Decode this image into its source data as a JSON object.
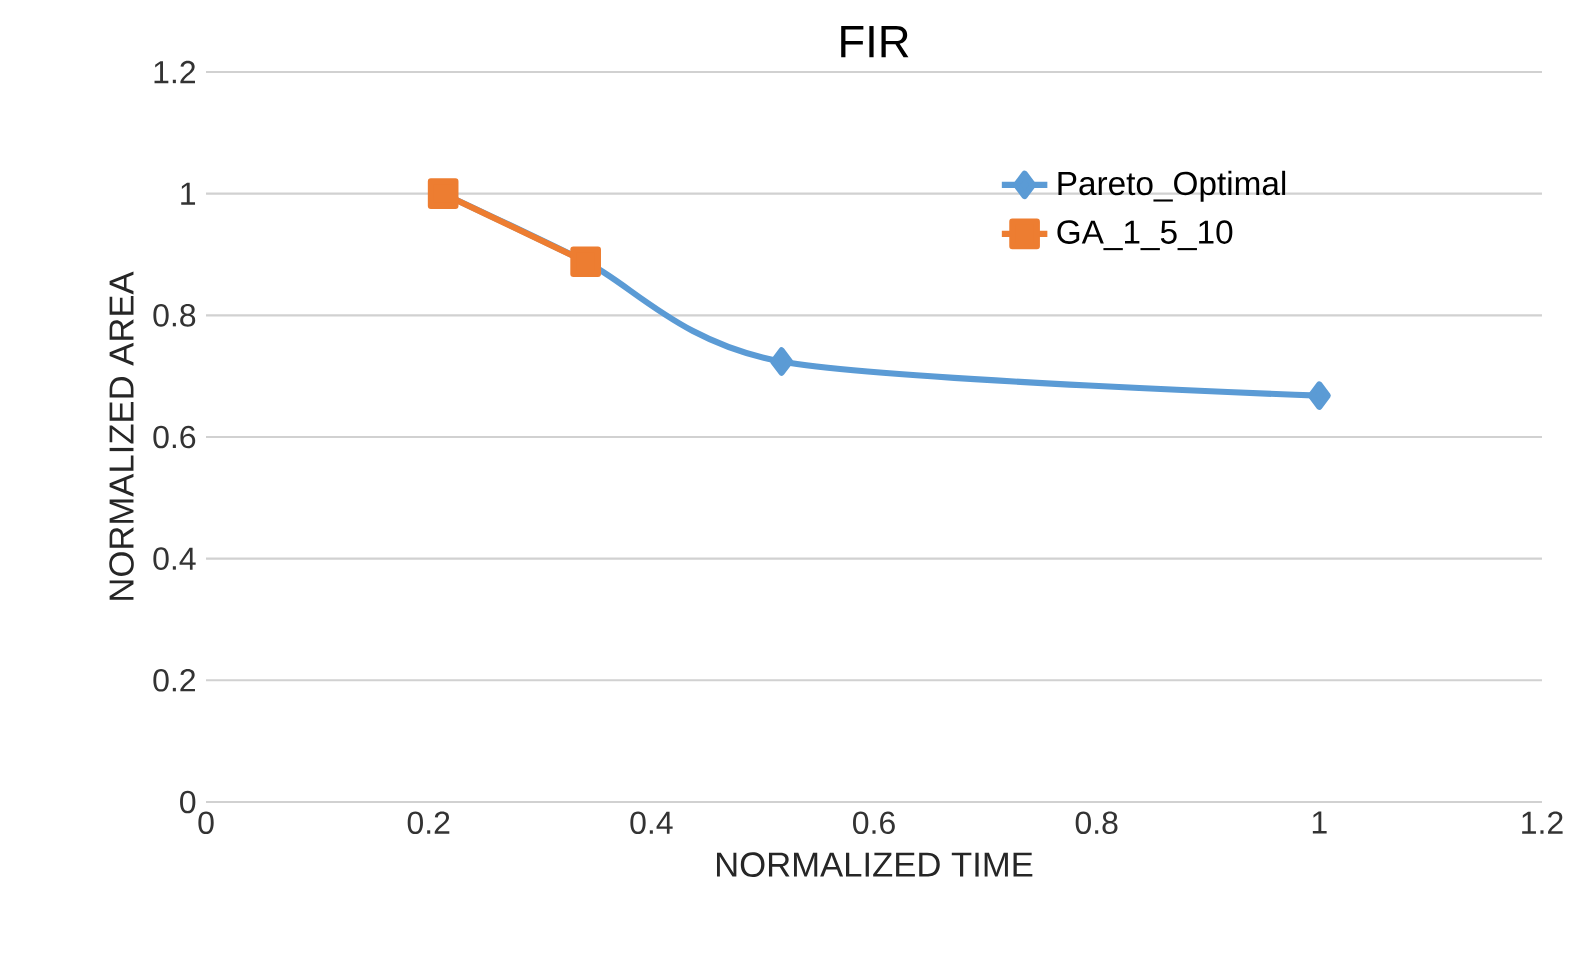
{
  "chart_data": {
    "type": "line",
    "title": "FIR",
    "xlabel": "NORMALIZED TIME",
    "ylabel": "NORMALIZED AREA",
    "xlim": [
      0,
      1.2
    ],
    "ylim": [
      0,
      1.2
    ],
    "xticks": [
      0,
      0.2,
      0.4,
      0.6,
      0.8,
      1,
      1.2
    ],
    "yticks": [
      0,
      0.2,
      0.4,
      0.6,
      0.8,
      1,
      1.2
    ],
    "grid": "y",
    "legend": "top right",
    "series": [
      {
        "name": "Pareto_Optimal",
        "color": "#5b9bd5",
        "marker": "diamond",
        "x": [
          0.213,
          0.341,
          0.517,
          1.0
        ],
        "values": [
          1.0,
          0.888,
          0.724,
          0.668
        ]
      },
      {
        "name": "GA_1_5_10",
        "color": "#ed7d31",
        "marker": "square",
        "x": [
          0.213,
          0.341
        ],
        "values": [
          1.0,
          0.888
        ]
      }
    ]
  }
}
